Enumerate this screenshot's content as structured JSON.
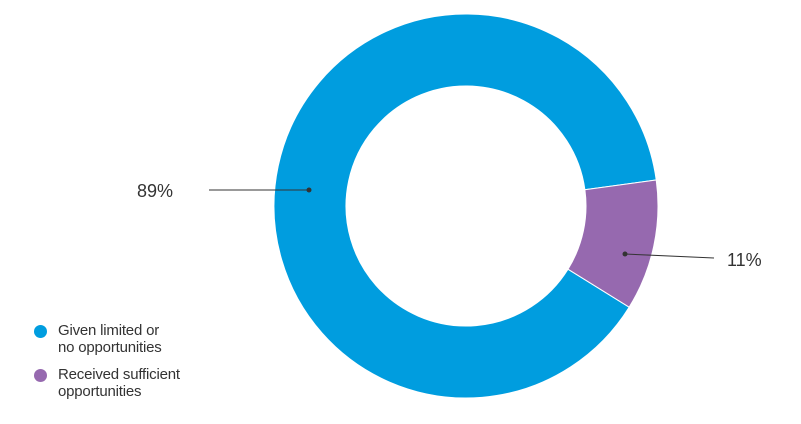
{
  "chart_data": {
    "type": "pie",
    "donut": true,
    "title": "",
    "slices": [
      {
        "label": "Given limited or no opportunities",
        "value": 89,
        "display": "89%",
        "color": "#009DDF"
      },
      {
        "label": "Received sufficient opportunities",
        "value": 11,
        "display": "11%",
        "color": "#9669AF"
      }
    ],
    "legend_position": "bottom-left"
  },
  "legend": {
    "items": [
      {
        "line1": "Given limited or",
        "line2": "no opportunities",
        "color": "#009DDF"
      },
      {
        "line1": "Received sufficient",
        "line2": "opportunities",
        "color": "#9669AF"
      }
    ]
  }
}
